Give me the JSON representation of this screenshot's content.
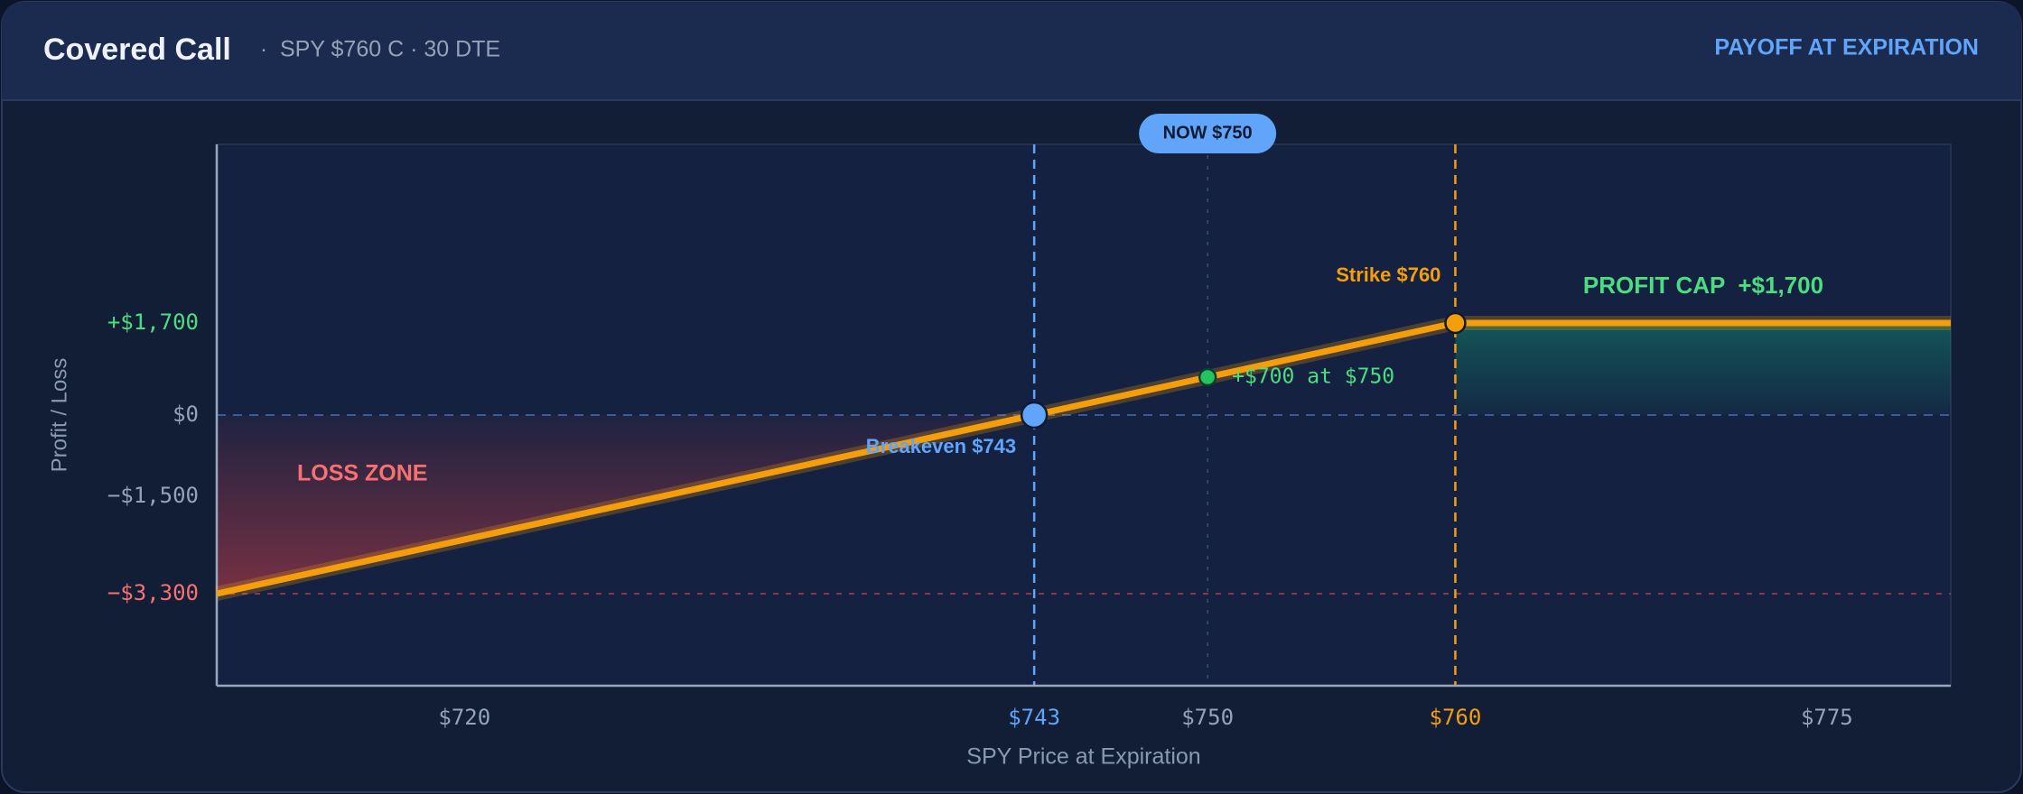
{
  "chart_data": {
    "type": "line",
    "title": "Covered Call",
    "subtitle": "SPY $760 C · 30 DTE",
    "header_right": "PAYOFF AT EXPIRATION",
    "x_label": "SPY Price at Expiration",
    "y_label": "Profit / Loss",
    "xlim": [
      710,
      780
    ],
    "ylim": [
      -5000,
      5000
    ],
    "xticks": [
      {
        "value": 720,
        "label": "$720"
      },
      {
        "value": 743,
        "label": "$743"
      },
      {
        "value": 750,
        "label": "$750"
      },
      {
        "value": 760,
        "label": "$760"
      },
      {
        "value": 775,
        "label": "$775"
      }
    ],
    "yticks": [
      {
        "value": 1700,
        "label": "+$1,700"
      },
      {
        "value": 0,
        "label": "$0"
      },
      {
        "value": -1500,
        "label": "−$1,500"
      },
      {
        "value": -3300,
        "label": "−$3,300"
      }
    ],
    "series": [
      {
        "name": "Covered Call",
        "color": "#f59e0b",
        "x": [
          710,
          743,
          750,
          760,
          780
        ],
        "values": [
          -3300,
          0,
          700,
          1700,
          1700
        ],
        "marker_colors": [
          null,
          "#60a5fa",
          "#22c55e",
          "#f59e0b",
          null
        ]
      }
    ],
    "now_label": "NOW $750",
    "strike_label": "Strike $760",
    "cap_label": "PROFIT CAP  +$1,700",
    "point_label": "+$700 at $750",
    "breakeven_label": "Breakeven $743",
    "loss_label": "LOSS ZONE"
  }
}
